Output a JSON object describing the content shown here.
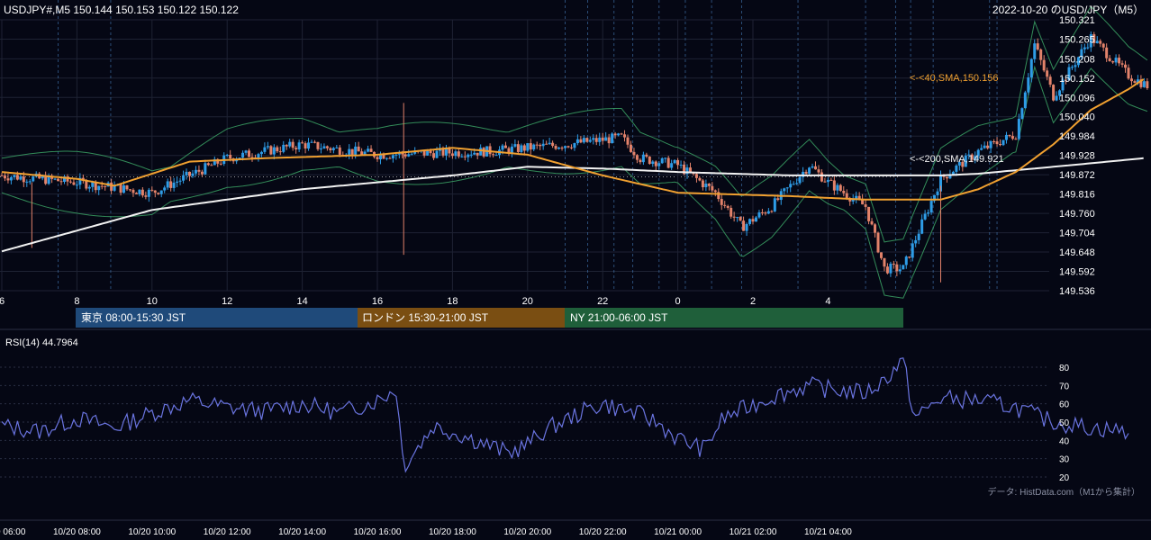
{
  "header": {
    "symbol_info": "USDJPY#,M5 150.144 150.153 150.122 150.122",
    "right_title": "2022-10-20 のUSD/JPY（M5）"
  },
  "price_axis": {
    "ticks": [
      "150.321",
      "150.265",
      "150.208",
      "150.152",
      "150.096",
      "150.040",
      "149.984",
      "149.928",
      "149.872",
      "149.816",
      "149.760",
      "149.704",
      "149.648",
      "149.592",
      "149.536"
    ],
    "min": 149.536,
    "max": 150.321
  },
  "hour_axis": {
    "labels": [
      "6",
      "8",
      "10",
      "12",
      "14",
      "16",
      "18",
      "20",
      "22",
      "0",
      "2",
      "4"
    ]
  },
  "ma_labels": {
    "sma40": "<-<40,SMA,150.156",
    "sma200": "<-<200,SMA,149.921"
  },
  "sessions": [
    {
      "label": "東京 08:00-15:30 JST",
      "color": "#1f4a7a"
    },
    {
      "label": "ロンドン 15:30-21:00 JST",
      "color": "#7a4e12"
    },
    {
      "label": "NY 21:00-06:00 JST",
      "color": "#1f5f3a"
    }
  ],
  "rsi": {
    "label": "RSI(14) 44.7964",
    "ticks": [
      "80",
      "70",
      "60",
      "50",
      "40",
      "30",
      "20"
    ]
  },
  "source_note": "データ: HistData.com（M1から集計）",
  "time_axis": {
    "labels": [
      "10/20 06:00",
      "10/20 08:00",
      "10/20 10:00",
      "10/20 12:00",
      "10/20 14:00",
      "10/20 16:00",
      "10/20 18:00",
      "10/20 20:00",
      "10/20 22:00",
      "10/21 00:00",
      "10/21 02:00",
      "10/21 04:00"
    ]
  },
  "colors": {
    "background": "#050714",
    "up": "#2e9ce6",
    "down": "#e2826a",
    "sma40": "#f0a030",
    "sma200": "#f2f2f2",
    "bollinger": "#3fae6a",
    "rsi_line": "#6a74e0",
    "grid": "#1e2233"
  },
  "chart_data": {
    "type": "candlestick",
    "title": "2022-10-20 のUSD/JPY（M5）",
    "y_range": [
      149.536,
      150.321
    ],
    "x_hours": [
      "6",
      "8",
      "10",
      "12",
      "14",
      "16",
      "18",
      "20",
      "22",
      "0",
      "2",
      "4"
    ],
    "sma40_last": 150.156,
    "sma200_last": 149.921,
    "last_close": 150.122,
    "rsi_last": 44.7964,
    "rsi_range": [
      20,
      80
    ],
    "close_anchors": [
      [
        0,
        149.87
      ],
      [
        2,
        149.85
      ],
      [
        4,
        149.82
      ],
      [
        6,
        149.92
      ],
      [
        8,
        149.96
      ],
      [
        10,
        149.93
      ],
      [
        13,
        149.94
      ],
      [
        15,
        149.96
      ],
      [
        16.5,
        149.98
      ],
      [
        17,
        149.92
      ],
      [
        18,
        149.9
      ],
      [
        19,
        149.82
      ],
      [
        19.7,
        149.72
      ],
      [
        20.5,
        149.78
      ],
      [
        21.5,
        149.9
      ],
      [
        22,
        149.85
      ],
      [
        23,
        149.78
      ],
      [
        23.5,
        149.6
      ],
      [
        24,
        149.6
      ],
      [
        25,
        149.86
      ],
      [
        26,
        149.94
      ],
      [
        27,
        149.99
      ],
      [
        27.5,
        150.25
      ],
      [
        28,
        150.1
      ],
      [
        29,
        150.27
      ],
      [
        30,
        150.16
      ],
      [
        30.5,
        150.13
      ]
    ],
    "sma40_anchors": [
      [
        0,
        149.88
      ],
      [
        2,
        149.86
      ],
      [
        3,
        149.84
      ],
      [
        5,
        149.91
      ],
      [
        7,
        149.92
      ],
      [
        10,
        149.93
      ],
      [
        12,
        149.95
      ],
      [
        14,
        149.93
      ],
      [
        16,
        149.87
      ],
      [
        18,
        149.82
      ],
      [
        21,
        149.81
      ],
      [
        23,
        149.8
      ],
      [
        25,
        149.8
      ],
      [
        26,
        149.83
      ],
      [
        27,
        149.88
      ],
      [
        28,
        149.96
      ],
      [
        29,
        150.06
      ],
      [
        30,
        150.12
      ],
      [
        30.5,
        150.156
      ]
    ],
    "sma200_anchors": [
      [
        0,
        149.65
      ],
      [
        4,
        149.77
      ],
      [
        8,
        149.83
      ],
      [
        12,
        149.87
      ],
      [
        14,
        149.895
      ],
      [
        16,
        149.89
      ],
      [
        18,
        149.88
      ],
      [
        21,
        149.87
      ],
      [
        23,
        149.87
      ],
      [
        25,
        149.87
      ],
      [
        26,
        149.875
      ],
      [
        28,
        149.895
      ],
      [
        30.5,
        149.921
      ]
    ],
    "rsi_anchors": [
      [
        0,
        48
      ],
      [
        1,
        45
      ],
      [
        2,
        52
      ],
      [
        3,
        47
      ],
      [
        4,
        55
      ],
      [
        5,
        62
      ],
      [
        6,
        58
      ],
      [
        7,
        56
      ],
      [
        8,
        60
      ],
      [
        9,
        55
      ],
      [
        10,
        62
      ],
      [
        10.5,
        68
      ],
      [
        10.7,
        26
      ],
      [
        11.5,
        48
      ],
      [
        12.5,
        41
      ],
      [
        13.5,
        33
      ],
      [
        14,
        38
      ],
      [
        14.5,
        46
      ],
      [
        15.5,
        56
      ],
      [
        16,
        60
      ],
      [
        17,
        54
      ],
      [
        17.5,
        49
      ],
      [
        18,
        41
      ],
      [
        18.7,
        35
      ],
      [
        19.2,
        52
      ],
      [
        20.5,
        64
      ],
      [
        21.5,
        70
      ],
      [
        22,
        68
      ],
      [
        23,
        66
      ],
      [
        23.5,
        73
      ],
      [
        24,
        84
      ],
      [
        24.3,
        52
      ],
      [
        25,
        63
      ],
      [
        26,
        62
      ],
      [
        27,
        58
      ],
      [
        28,
        50
      ],
      [
        29,
        47
      ],
      [
        30,
        44.8
      ]
    ]
  }
}
